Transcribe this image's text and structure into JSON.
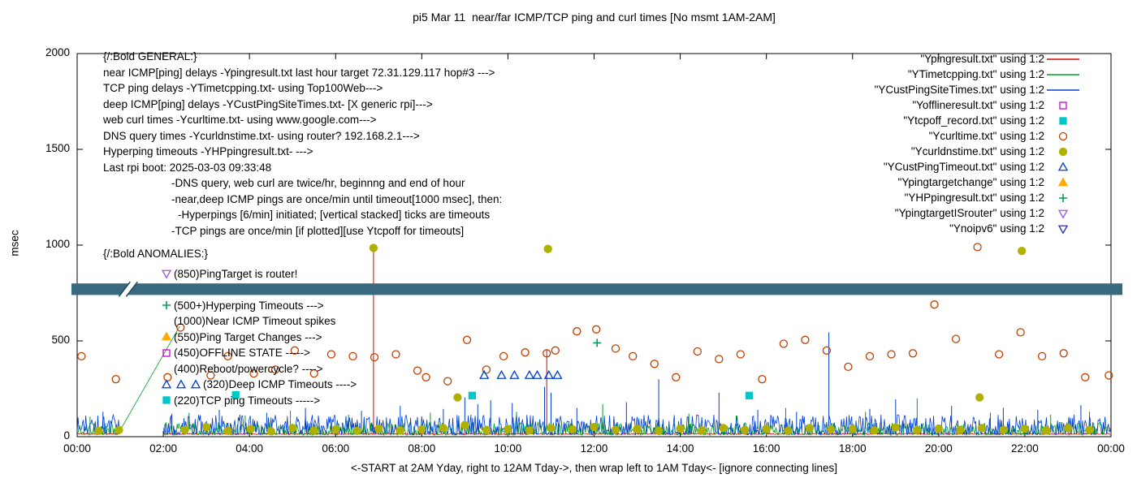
{
  "title": "pi5 Mar 11  near/far ICMP/TCP ping and curl times [No msmt 1AM-2AM]",
  "axes": {
    "ylabel": "msec",
    "xlabel": "<-START at 2AM Yday, right to 12AM Tday->, then wrap left to 1AM Tday<- [ignore connecting lines]",
    "yticks": [
      0,
      500,
      1000,
      1500,
      2000
    ],
    "xticks": [
      "00:00",
      "02:00",
      "04:00",
      "06:00",
      "08:00",
      "10:00",
      "12:00",
      "14:00",
      "16:00",
      "18:00",
      "20:00",
      "22:00",
      "00:00"
    ],
    "ylim": [
      0,
      2000
    ],
    "xlim_hours": [
      0,
      24
    ]
  },
  "legend": [
    {
      "label": "\"Ypingresult.txt\" using 1:2",
      "sample": "line",
      "color": "#dd0000"
    },
    {
      "label": "\"YTimetcpping.txt\" using 1:2",
      "sample": "line",
      "color": "#00a020"
    },
    {
      "label": "\"YCustPingSiteTimes.txt\" using 1:2",
      "sample": "line",
      "color": "#0040d0"
    },
    {
      "label": "\"Yofflineresult.txt\" using 1:2",
      "sample": "marker",
      "marker": "square",
      "filled": false,
      "color": "#cc00cc"
    },
    {
      "label": "\"Ytcpoff_record.txt\" using 1:2",
      "sample": "marker",
      "marker": "square",
      "filled": true,
      "color": "#00c8c8"
    },
    {
      "label": "\"Ycurltime.txt\" using 1:2",
      "sample": "marker",
      "marker": "circle",
      "filled": false,
      "color": "#c04000"
    },
    {
      "label": "\"Ycurldnstime.txt\" using 1:2",
      "sample": "marker",
      "marker": "circle",
      "filled": true,
      "color": "#b0b000"
    },
    {
      "label": "\"YCustPingTimeout.txt\" using 1:2",
      "sample": "marker",
      "marker": "triangle-up",
      "filled": false,
      "color": "#0040d0"
    },
    {
      "label": "\"Ypingtargetchange\" using 1:2",
      "sample": "marker",
      "marker": "triangle-up",
      "filled": true,
      "color": "#ffaa00"
    },
    {
      "label": "\"YHPpingresult.txt\" using 1:2",
      "sample": "marker",
      "marker": "plus",
      "filled": false,
      "color": "#00a050"
    },
    {
      "label": "\"YpingtargetISrouter\" using 1:2",
      "sample": "marker",
      "marker": "triangle-down",
      "filled": false,
      "color": "#9955dd"
    },
    {
      "label": "\"Ynoipv6\" using 1:2",
      "sample": "marker",
      "marker": "triangle-down",
      "filled": false,
      "color": "#2030b0"
    }
  ],
  "annotations": {
    "general": {
      "lines": [
        {
          "indent": 0,
          "text": "{/:Bold GENERAL:}"
        },
        {
          "indent": 0,
          "text": "near ICMP[ping] delays -Ypingresult.txt last hour target 72.31.129.117 hop#3 --->"
        },
        {
          "indent": 0,
          "text": "TCP ping delays -YTimetcpping.txt- using Top100Web--->"
        },
        {
          "indent": 0,
          "text": "deep ICMP[ping] delays -YCustPingSiteTimes.txt- [X generic rpi]--->"
        },
        {
          "indent": 0,
          "text": "web curl times -Ycurltime.txt- using www.google.com--->"
        },
        {
          "indent": 0,
          "text": "DNS query times -Ycurldnstime.txt- using router? 192.168.2.1--->"
        },
        {
          "indent": 0,
          "text": "Hyperping timeouts -YHPpingresult.txt- --->"
        },
        {
          "indent": 0,
          "text": "Last rpi boot: 2025-03-03 09:33:48"
        },
        {
          "indent": 1,
          "text": "-DNS query, web curl are twice/hr, beginnng and end of hour"
        },
        {
          "indent": 1,
          "text": "-near,deep ICMP pings are once/min until timeout[1000 msec], then:"
        },
        {
          "indent": 2,
          "text": "-Hyperpings [6/min] initiated; [vertical stacked] ticks are timeouts"
        },
        {
          "indent": 1,
          "text": "-TCP pings are once/min [if plotted][use Ytcpoff for timeouts]"
        }
      ]
    },
    "anomalies": {
      "header": "{/:Bold ANOMALIES:}",
      "lines": [
        {
          "icons": [
            {
              "shape": "triangle-down",
              "color": "#9955dd",
              "filled": false
            }
          ],
          "text": "(850)PingTarget is router!"
        },
        {
          "icons": [],
          "text": ""
        },
        {
          "icons": [
            {
              "shape": "plus",
              "color": "#00a050",
              "filled": false
            }
          ],
          "text": "(500+)Hyperping Timeouts --->"
        },
        {
          "icons": [],
          "text": "(1000)Near ICMP Timeout spikes"
        },
        {
          "icons": [
            {
              "shape": "triangle-up",
              "color": "#ffaa00",
              "filled": true
            }
          ],
          "text": "(550)Ping Target Changes --->"
        },
        {
          "icons": [
            {
              "shape": "square",
              "color": "#cc00cc",
              "filled": false
            }
          ],
          "text": "(450)OFFLINE STATE ----->"
        },
        {
          "icons": [],
          "text": "(400)Reboot/powercycle? ---->"
        },
        {
          "icons": [
            {
              "shape": "triangle-up",
              "color": "#0040d0",
              "filled": false
            },
            {
              "shape": "triangle-up",
              "color": "#0040d0",
              "filled": false
            },
            {
              "shape": "triangle-up",
              "color": "#0040d0",
              "filled": false
            }
          ],
          "text": "(320)Deep ICMP Timeouts ---->"
        },
        {
          "icons": [
            {
              "shape": "square",
              "color": "#00c8c8",
              "filled": true
            }
          ],
          "text": "(220)TCP ping Timeouts ----->"
        }
      ]
    }
  },
  "band": {
    "y_msec": 770,
    "half_thickness_msec": 30,
    "color": "#38697e",
    "edge_color": "#1e4a5f",
    "break_at_hour": 1.1
  },
  "chart_data": {
    "type": "line",
    "title": "pi5 Mar 11  near/far ICMP/TCP ping and curl times [No msmt 1AM-2AM]",
    "xlabel": "<-START at 2AM Yday, right to 12AM Tday->, then wrap left to 1AM Tday<- [ignore connecting lines]",
    "ylabel": "msec",
    "xlim_hours": [
      0,
      24
    ],
    "ylim": [
      0,
      2000
    ],
    "grid": false,
    "legend_position": "top-right",
    "no_measurement_window_hours": [
      1,
      2
    ],
    "series": [
      {
        "name": "Ypingresult.txt",
        "style": "line",
        "color": "#dd0000",
        "baseline_msec": {
          "min": 12,
          "max": 19
        },
        "spikes": [
          [
            6.88,
            985
          ],
          [
            10.9,
            455
          ]
        ]
      },
      {
        "name": "YTimetcpping.txt",
        "style": "line",
        "color": "#00a020",
        "baseline_msec": {
          "min": 8,
          "max": 75
        },
        "spikes": [
          [
            0.3,
            105
          ],
          [
            2.6,
            125
          ],
          [
            3.9,
            110
          ],
          [
            4.95,
            135
          ],
          [
            6.3,
            115
          ],
          [
            8.2,
            125
          ],
          [
            10.2,
            130
          ],
          [
            12.2,
            170
          ],
          [
            14.2,
            120
          ],
          [
            15.3,
            110
          ],
          [
            16.45,
            150
          ],
          [
            18.3,
            130
          ],
          [
            19.5,
            200
          ],
          [
            21.2,
            125
          ],
          [
            22.6,
            115
          ],
          [
            23.5,
            130
          ]
        ],
        "connector_segments": [
          [
            [
              1.0,
              34
            ],
            [
              2.38,
              576
            ]
          ]
        ]
      },
      {
        "name": "YCustPingSiteTimes.txt",
        "style": "line",
        "color": "#0040d0",
        "baseline_msec": {
          "min": 10,
          "max": 115
        },
        "spikes": [
          [
            0.6,
            130
          ],
          [
            2.2,
            120
          ],
          [
            3.3,
            140
          ],
          [
            4.4,
            125
          ],
          [
            5.3,
            150
          ],
          [
            6.6,
            135
          ],
          [
            7.5,
            160
          ],
          [
            8.5,
            145
          ],
          [
            9.0,
            205
          ],
          [
            9.3,
            170
          ],
          [
            9.6,
            190
          ],
          [
            10.1,
            175
          ],
          [
            10.85,
            260
          ],
          [
            11.0,
            230
          ],
          [
            11.6,
            150
          ],
          [
            12.75,
            180
          ],
          [
            13.5,
            300
          ],
          [
            14.9,
            230
          ],
          [
            15.8,
            140
          ],
          [
            16.7,
            130
          ],
          [
            17.45,
            545
          ],
          [
            18.4,
            145
          ],
          [
            19.0,
            195
          ],
          [
            20.3,
            160
          ],
          [
            21.5,
            150
          ],
          [
            22.3,
            140
          ],
          [
            23.3,
            165
          ]
        ]
      },
      {
        "name": "Yofflineresult.txt",
        "style": "points",
        "marker": "square",
        "filled": false,
        "color": "#cc00cc",
        "points": []
      },
      {
        "name": "Ytcpoff_record.txt",
        "style": "points",
        "marker": "square",
        "filled": true,
        "color": "#00c8c8",
        "points": [
          [
            3.68,
            218
          ],
          [
            9.17,
            215
          ],
          [
            15.6,
            215
          ]
        ]
      },
      {
        "name": "Ycurltime.txt",
        "style": "points",
        "marker": "circle",
        "filled": false,
        "color": "#c04000",
        "points": [
          [
            0.1,
            420
          ],
          [
            0.9,
            300
          ],
          [
            2.1,
            310
          ],
          [
            2.4,
            570
          ],
          [
            3.1,
            320
          ],
          [
            3.5,
            420
          ],
          [
            4.1,
            330
          ],
          [
            4.6,
            350
          ],
          [
            5.05,
            450
          ],
          [
            5.5,
            330
          ],
          [
            5.9,
            430
          ],
          [
            6.4,
            420
          ],
          [
            6.9,
            415
          ],
          [
            7.4,
            430
          ],
          [
            7.9,
            345
          ],
          [
            8.1,
            310
          ],
          [
            8.6,
            290
          ],
          [
            9.05,
            505
          ],
          [
            9.5,
            350
          ],
          [
            9.9,
            420
          ],
          [
            10.4,
            440
          ],
          [
            10.9,
            435
          ],
          [
            11.1,
            450
          ],
          [
            11.6,
            550
          ],
          [
            12.05,
            560
          ],
          [
            12.5,
            460
          ],
          [
            12.9,
            420
          ],
          [
            13.4,
            380
          ],
          [
            13.9,
            310
          ],
          [
            14.4,
            445
          ],
          [
            14.9,
            405
          ],
          [
            15.4,
            430
          ],
          [
            15.9,
            300
          ],
          [
            16.4,
            485
          ],
          [
            16.9,
            505
          ],
          [
            17.4,
            450
          ],
          [
            17.9,
            365
          ],
          [
            18.4,
            420
          ],
          [
            18.9,
            430
          ],
          [
            19.4,
            435
          ],
          [
            19.9,
            690
          ],
          [
            20.4,
            510
          ],
          [
            20.9,
            990
          ],
          [
            21.4,
            430
          ],
          [
            21.9,
            545
          ],
          [
            22.4,
            420
          ],
          [
            22.9,
            435
          ],
          [
            23.4,
            310
          ],
          [
            23.95,
            320
          ]
        ]
      },
      {
        "name": "Ycurldnstime.txt",
        "style": "points",
        "marker": "circle",
        "filled": true,
        "color": "#b0b000",
        "points": [
          [
            0.5,
            30
          ],
          [
            0.97,
            35
          ],
          [
            2.5,
            35
          ],
          [
            3.0,
            50
          ],
          [
            3.5,
            30
          ],
          [
            4.03,
            40
          ],
          [
            4.5,
            28
          ],
          [
            5.0,
            45
          ],
          [
            5.5,
            30
          ],
          [
            6.0,
            38
          ],
          [
            6.5,
            30
          ],
          [
            6.88,
            985
          ],
          [
            7.0,
            42
          ],
          [
            7.5,
            32
          ],
          [
            8.0,
            38
          ],
          [
            8.5,
            45
          ],
          [
            8.83,
            205
          ],
          [
            9.0,
            60
          ],
          [
            9.5,
            35
          ],
          [
            10.0,
            40
          ],
          [
            10.5,
            32
          ],
          [
            10.93,
            980
          ],
          [
            11.0,
            45
          ],
          [
            11.5,
            38
          ],
          [
            12.0,
            50
          ],
          [
            12.5,
            35
          ],
          [
            13.0,
            40
          ],
          [
            13.5,
            30
          ],
          [
            14.0,
            42
          ],
          [
            14.5,
            32
          ],
          [
            15.0,
            45
          ],
          [
            15.5,
            35
          ],
          [
            16.0,
            40
          ],
          [
            16.5,
            30
          ],
          [
            17.0,
            45
          ],
          [
            17.5,
            38
          ],
          [
            18.0,
            40
          ],
          [
            18.5,
            32
          ],
          [
            19.0,
            48
          ],
          [
            19.5,
            35
          ],
          [
            20.0,
            42
          ],
          [
            20.5,
            35
          ],
          [
            20.95,
            205
          ],
          [
            21.0,
            45
          ],
          [
            21.5,
            35
          ],
          [
            21.93,
            970
          ],
          [
            22.0,
            42
          ],
          [
            22.5,
            32
          ],
          [
            23.0,
            45
          ],
          [
            23.5,
            35
          ]
        ]
      },
      {
        "name": "YCustPingTimeout.txt",
        "style": "points",
        "marker": "triangle-up",
        "filled": false,
        "color": "#0040d0",
        "points": [
          [
            9.45,
            320
          ],
          [
            9.85,
            320
          ],
          [
            10.15,
            320
          ],
          [
            10.5,
            320
          ],
          [
            10.68,
            320
          ],
          [
            10.95,
            320
          ],
          [
            11.15,
            320
          ]
        ]
      },
      {
        "name": "Ypingtargetchange",
        "style": "points",
        "marker": "triangle-up",
        "filled": true,
        "color": "#ffaa00",
        "points": []
      },
      {
        "name": "YHPpingresult.txt",
        "style": "points",
        "marker": "plus",
        "filled": false,
        "color": "#00a050",
        "points": [
          [
            12.07,
            490
          ]
        ]
      },
      {
        "name": "YpingtargetISrouter",
        "style": "points",
        "marker": "triangle-down",
        "filled": false,
        "color": "#9955dd",
        "points": []
      },
      {
        "name": "Ynoipv6",
        "style": "points",
        "marker": "triangle-down",
        "filled": false,
        "color": "#2030b0",
        "points": []
      }
    ]
  }
}
